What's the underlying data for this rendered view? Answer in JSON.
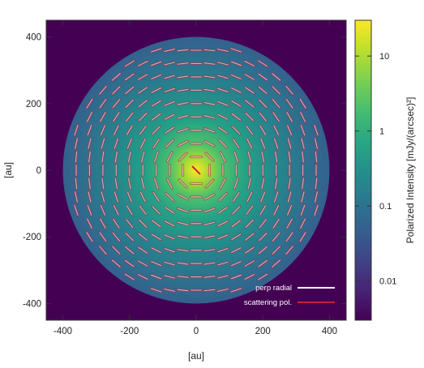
{
  "chart_data": {
    "type": "heatmap",
    "title": "",
    "xlabel": "[au]",
    "ylabel": "[au]",
    "xlim": [
      -450,
      450
    ],
    "ylim": [
      -450,
      450
    ],
    "xticks": [
      -400,
      -200,
      0,
      200,
      400
    ],
    "yticks": [
      -400,
      -200,
      0,
      200,
      400
    ],
    "x_tick_labels": [
      "-400",
      "-200",
      "0",
      "200",
      "400"
    ],
    "y_tick_labels": [
      "-400",
      "-200",
      "0",
      "200",
      "400"
    ],
    "grid": false,
    "disk_outer_radius_au": 400,
    "colormap": "viridis",
    "background_color": "#440154",
    "colorbar": {
      "label": "Polarized Intensity [mJy/(arcsec)²]",
      "scale": "log",
      "range": [
        0.003,
        30
      ],
      "ticks": [
        0.01,
        0.1,
        1,
        10
      ],
      "tick_labels": [
        "0.01",
        "0.1",
        "1",
        "10"
      ]
    },
    "intensity_profile": [
      {
        "r_au": 0,
        "value": 30
      },
      {
        "r_au": 40,
        "value": 8
      },
      {
        "r_au": 80,
        "value": 2.2
      },
      {
        "r_au": 150,
        "value": 0.6
      },
      {
        "r_au": 250,
        "value": 0.2
      },
      {
        "r_au": 350,
        "value": 0.08
      },
      {
        "r_au": 400,
        "value": 0.05
      }
    ],
    "vector_grid_spacing_au": 40,
    "legend": {
      "placement": "bottom-right",
      "entries": [
        {
          "label": "perp radial",
          "color": "#ffffff"
        },
        {
          "label": "scattering pol.",
          "color": "#c21f3a"
        }
      ]
    }
  }
}
